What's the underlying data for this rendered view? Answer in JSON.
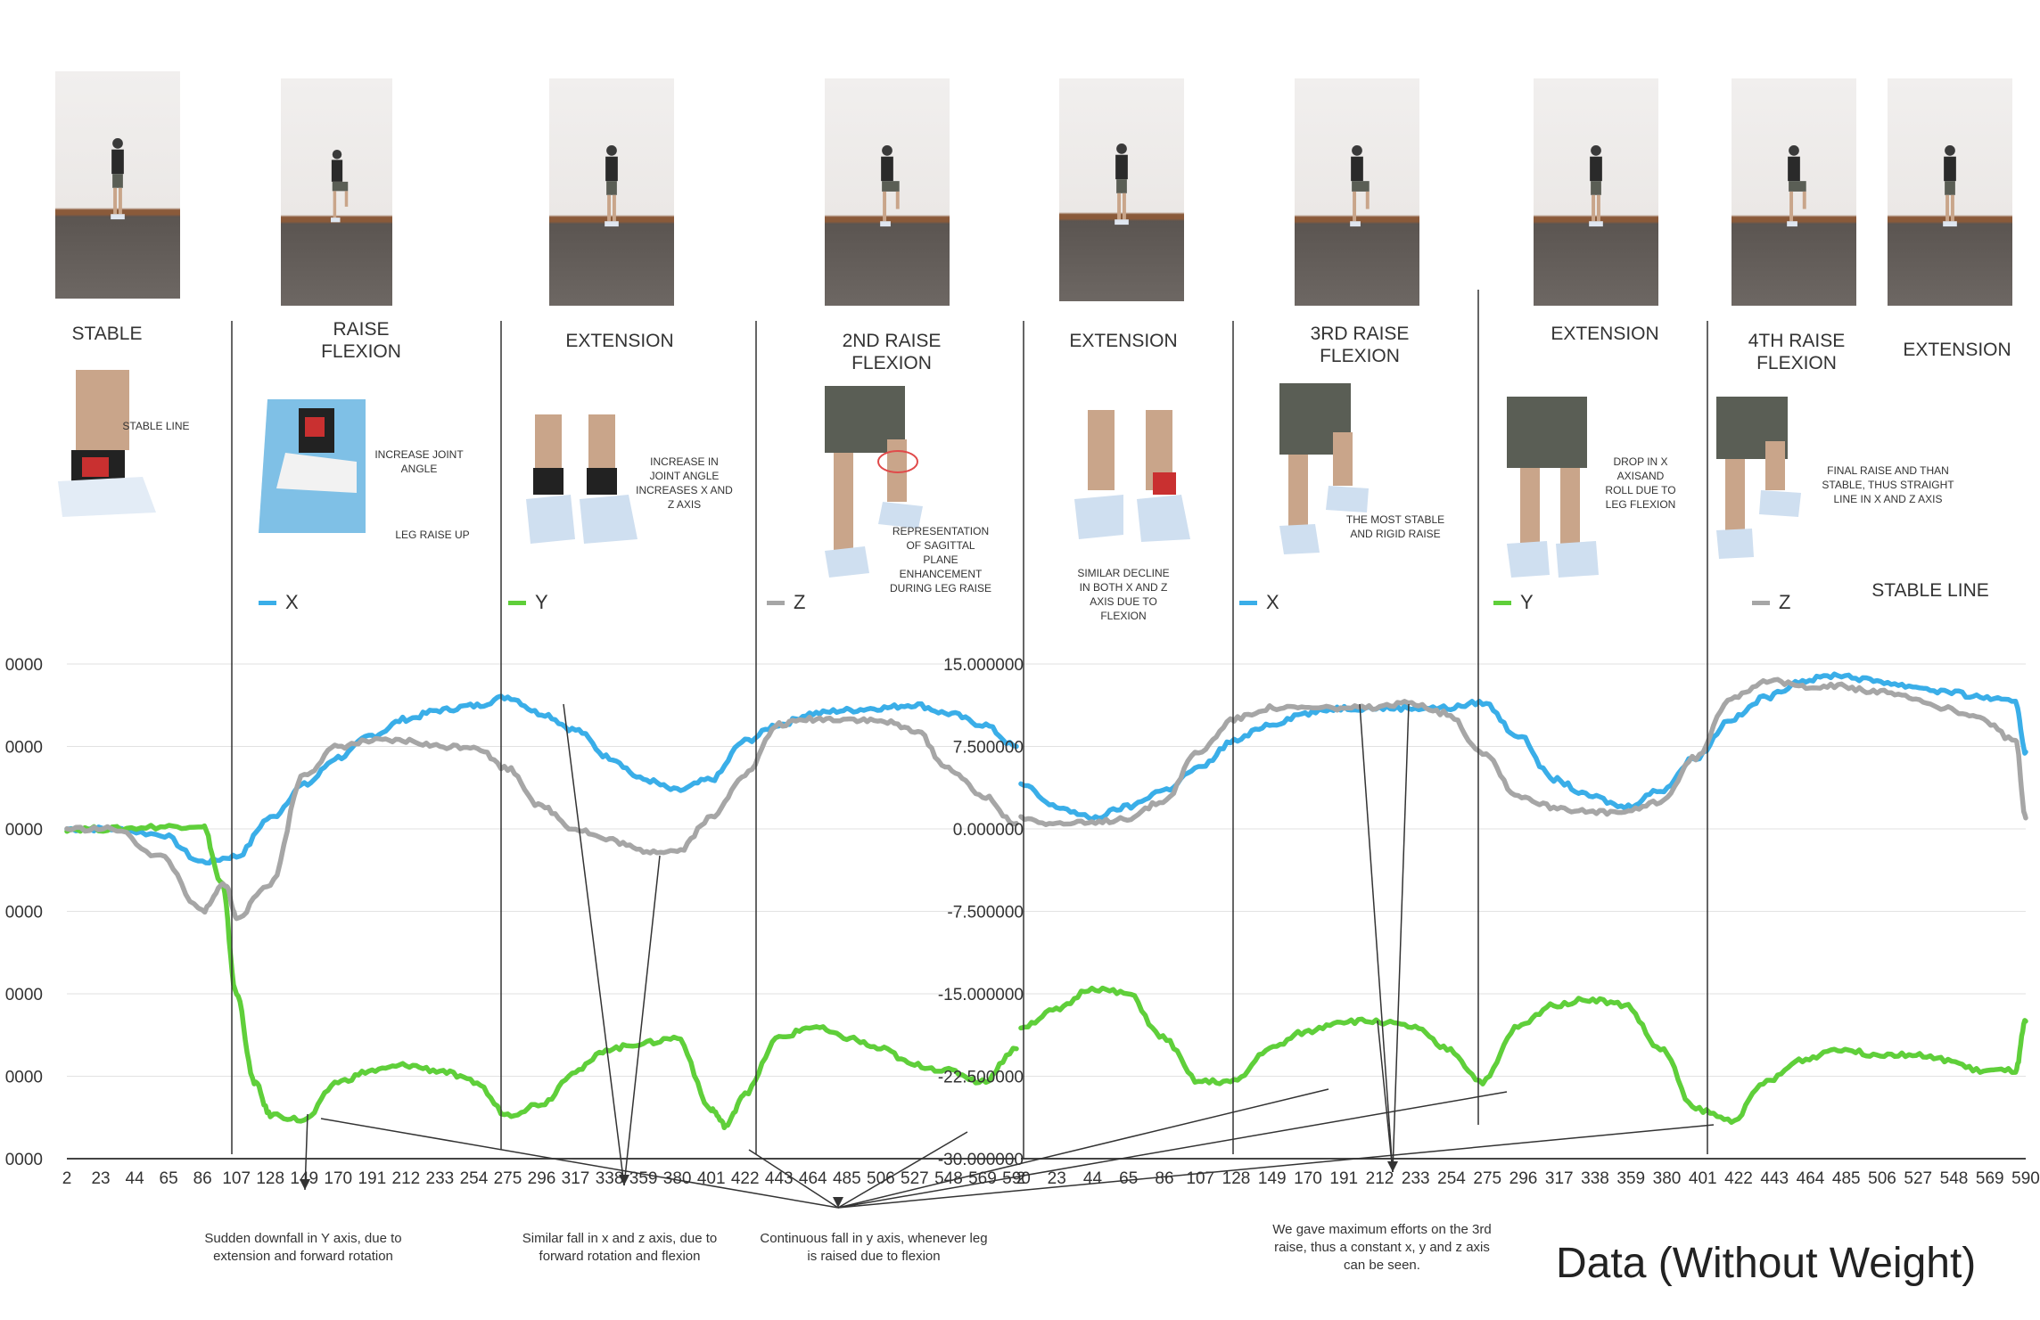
{
  "phases": [
    {
      "label": "STABLE"
    },
    {
      "label": "RAISE\nFLEXION"
    },
    {
      "label": "EXTENSION"
    },
    {
      "label": "2ND RAISE\nFLEXION"
    },
    {
      "label": "EXTENSION"
    },
    {
      "label": "3RD RAISE\nFLEXION"
    },
    {
      "label": "EXTENSION"
    },
    {
      "label": "4TH RAISE\nFLEXION"
    },
    {
      "label": "EXTENSION"
    }
  ],
  "thumb_notes": [
    "STABLE LINE",
    "INCREASE JOINT\nANGLE",
    "LEG RAISE UP",
    "INCREASE IN\nJOINT ANGLE\nINCREASES X AND\nZ AXIS",
    "REPRESENTATION\nOF SAGITTAL\nPLANE\nENHANCEMENT\nDURING LEG RAISE",
    "SIMILAR DECLINE\nIN BOTH X and Z\nAXIS DUE TO\nFLEXION",
    "THE MOST STABLE\nAND RIGID RAISE",
    "DROP IN X\nAXISAND\nROLL DUE TO\nLEG FLEXION",
    "FINAL RAISE AND THAN\nSTABLE, THUS STRAIGHT\nLINE IN X AND Z AXIS"
  ],
  "stable_line_label": "STABLE LINE",
  "annotations": [
    "Sudden downfall in Y axis, due to\nextension and forward rotation",
    "Similar fall in x and z axis, due to\nforward rotation and flexion",
    "Continuous fall in y axis, whenever leg\nis raised due to flexion",
    "We gave maximum efforts on the 3rd\nraise, thus a constant x, y and z axis\ncan be seen."
  ],
  "figure_title": "Data (Without Weight)",
  "colors": {
    "X": "#3aaee8",
    "Y": "#5fcf3a",
    "Z": "#a6a6a6"
  },
  "chart_data": [
    {
      "type": "line",
      "title": "",
      "xlabel": "",
      "ylabel": "",
      "ylim": [
        -30,
        15
      ],
      "yticks": [
        "0000",
        "0000",
        "0000",
        "0000",
        "0000",
        "0000",
        "0000"
      ],
      "legend": "above-plot",
      "x_ticks": [
        "2",
        "23",
        "44",
        "65",
        "86",
        "107",
        "128",
        "149",
        "170",
        "191",
        "212",
        "233",
        "254",
        "275",
        "296",
        "317",
        "338",
        "359",
        "380",
        "401",
        "422",
        "443",
        "464",
        "485",
        "506",
        "527",
        "548",
        "569",
        "590"
      ],
      "series": [
        {
          "name": "X",
          "x": [
            2,
            30,
            60,
            86,
            107,
            128,
            149,
            170,
            191,
            212,
            233,
            254,
            275,
            296,
            317,
            338,
            359,
            380,
            401,
            422,
            443,
            464,
            485,
            506,
            527,
            548,
            569,
            590
          ],
          "y": [
            0,
            0,
            -0.5,
            -3,
            -2.5,
            1,
            4,
            6.5,
            8.5,
            10,
            10.8,
            11.2,
            12,
            10.5,
            9,
            6.5,
            4.5,
            3.5,
            4.5,
            8,
            9.5,
            10.5,
            10.8,
            11,
            11.3,
            10.5,
            9.5,
            7.5
          ]
        },
        {
          "name": "Y",
          "x": [
            2,
            30,
            60,
            86,
            98,
            107,
            118,
            128,
            149,
            170,
            191,
            212,
            233,
            254,
            275,
            296,
            317,
            338,
            359,
            380,
            401,
            410,
            422,
            443,
            464,
            485,
            506,
            527,
            548,
            569,
            590
          ],
          "y": [
            0,
            0,
            0.2,
            0.3,
            -5,
            -15,
            -23,
            -26,
            -26.5,
            -23,
            -22,
            -21.5,
            -22,
            -23,
            -26,
            -25,
            -22,
            -20,
            -19.5,
            -19,
            -25.5,
            -27,
            -24,
            -19,
            -18,
            -19,
            -20,
            -21.5,
            -22,
            -23,
            -20
          ]
        },
        {
          "name": "Z",
          "x": [
            2,
            30,
            60,
            86,
            100,
            107,
            128,
            149,
            170,
            191,
            212,
            233,
            254,
            275,
            296,
            317,
            338,
            359,
            380,
            401,
            422,
            443,
            464,
            485,
            506,
            527,
            548,
            569,
            590
          ],
          "y": [
            0,
            0,
            -2.5,
            -7.5,
            -5,
            -8,
            -5,
            5,
            7.5,
            8,
            8,
            7.5,
            7.5,
            5.5,
            2,
            0,
            -1,
            -2,
            -2,
            1,
            5,
            9.5,
            10,
            10,
            9.8,
            9,
            5.5,
            3,
            0.5
          ]
        }
      ]
    },
    {
      "type": "line",
      "title": "",
      "xlabel": "",
      "ylabel": "",
      "ylim": [
        -30,
        15
      ],
      "yticks": [
        "15.000000",
        "7.500000",
        "0.000000",
        "-7.500000",
        "-15.000000",
        "-22.500000",
        "-30.000000"
      ],
      "legend": "above-plot",
      "x_ticks": [
        "2",
        "23",
        "44",
        "65",
        "86",
        "107",
        "128",
        "149",
        "170",
        "191",
        "212",
        "233",
        "254",
        "275",
        "296",
        "317",
        "338",
        "359",
        "380",
        "401",
        "422",
        "443",
        "464",
        "485",
        "506",
        "527",
        "548",
        "569",
        "590"
      ],
      "series": [
        {
          "name": "X",
          "x": [
            2,
            23,
            44,
            65,
            86,
            107,
            128,
            149,
            170,
            191,
            212,
            233,
            254,
            275,
            296,
            317,
            338,
            359,
            380,
            401,
            422,
            443,
            464,
            485,
            506,
            527,
            548,
            569,
            590,
            596
          ],
          "y": [
            4,
            2,
            1,
            2,
            3.5,
            5.5,
            8,
            9.5,
            10.5,
            11,
            11,
            11,
            11,
            11.5,
            8.5,
            4.5,
            3,
            2,
            3.5,
            6.5,
            10,
            12,
            13.5,
            14,
            13.5,
            13,
            12.5,
            12,
            11.5,
            7
          ]
        },
        {
          "name": "Y",
          "x": [
            2,
            23,
            44,
            65,
            86,
            107,
            128,
            149,
            170,
            191,
            212,
            233,
            254,
            275,
            296,
            317,
            338,
            359,
            380,
            401,
            422,
            443,
            464,
            485,
            506,
            527,
            548,
            569,
            590,
            596
          ],
          "y": [
            -18,
            -16.5,
            -14.5,
            -15,
            -19,
            -23,
            -23,
            -20,
            -18.5,
            -17.5,
            -17.5,
            -18,
            -20,
            -23,
            -18,
            -16,
            -15.5,
            -16,
            -20,
            -25.5,
            -26.5,
            -23,
            -21,
            -20,
            -20.5,
            -20.5,
            -21,
            -22,
            -22,
            -17.5
          ]
        },
        {
          "name": "Z",
          "x": [
            2,
            23,
            44,
            65,
            86,
            107,
            128,
            149,
            170,
            191,
            212,
            233,
            254,
            275,
            296,
            317,
            338,
            359,
            380,
            401,
            422,
            443,
            464,
            485,
            506,
            527,
            548,
            569,
            590,
            596
          ],
          "y": [
            1,
            0.5,
            0.5,
            1,
            2.5,
            7,
            10,
            11,
            11,
            11,
            11,
            11.5,
            10.5,
            7,
            3,
            2,
            1.5,
            1.5,
            2.5,
            6.5,
            12,
            13.5,
            13,
            13,
            12.5,
            12,
            11,
            10,
            8,
            1
          ]
        }
      ]
    }
  ]
}
